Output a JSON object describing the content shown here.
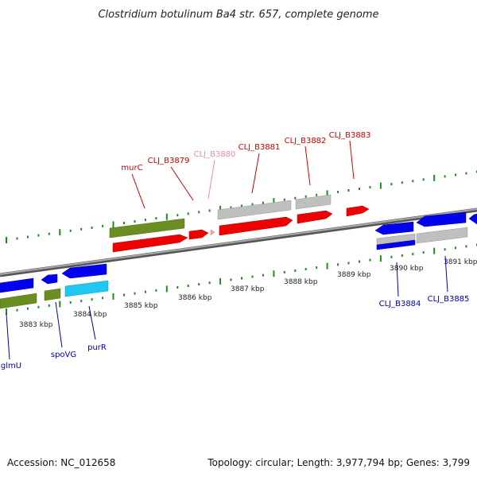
{
  "title": "Clostridium botulinum Ba4 str. 657, complete genome",
  "footer": {
    "accession": "Accession: NC_012658",
    "summary": "Topology: circular; Length: 3,977,794 bp; Genes: 3,799"
  },
  "colors": {
    "forward_label": "#cc0000",
    "reverse_label": "#0000aa",
    "faded_label": "#f08aa8",
    "dots": "#1f8a1f",
    "backbone": "#808080"
  },
  "scale": {
    "tick_labels": [
      "3883 kbp",
      "3884 kbp",
      "3885 kbp",
      "3886 kbp",
      "3887 kbp",
      "3888 kbp",
      "3889 kbp",
      "3890 kbp",
      "3891 kbp"
    ]
  },
  "genes": {
    "upper": [
      {
        "name": "murC",
        "color_key": "forward_label"
      },
      {
        "name": "CLJ_B3879",
        "color_key": "forward_label"
      },
      {
        "name": "CLJ_B3880",
        "color_key": "faded_label"
      },
      {
        "name": "CLJ_B3881",
        "color_key": "forward_label"
      },
      {
        "name": "CLJ_B3882",
        "color_key": "forward_label"
      },
      {
        "name": "CLJ_B3883",
        "color_key": "forward_label"
      }
    ],
    "lower": [
      {
        "name": "glmU",
        "color_key": "reverse_label"
      },
      {
        "name": "spoVG",
        "color_key": "reverse_label"
      },
      {
        "name": "purR",
        "color_key": "reverse_label"
      },
      {
        "name": "CLJ_B3884",
        "color_key": "reverse_label"
      },
      {
        "name": "CLJ_B3885",
        "color_key": "reverse_label"
      }
    ]
  }
}
